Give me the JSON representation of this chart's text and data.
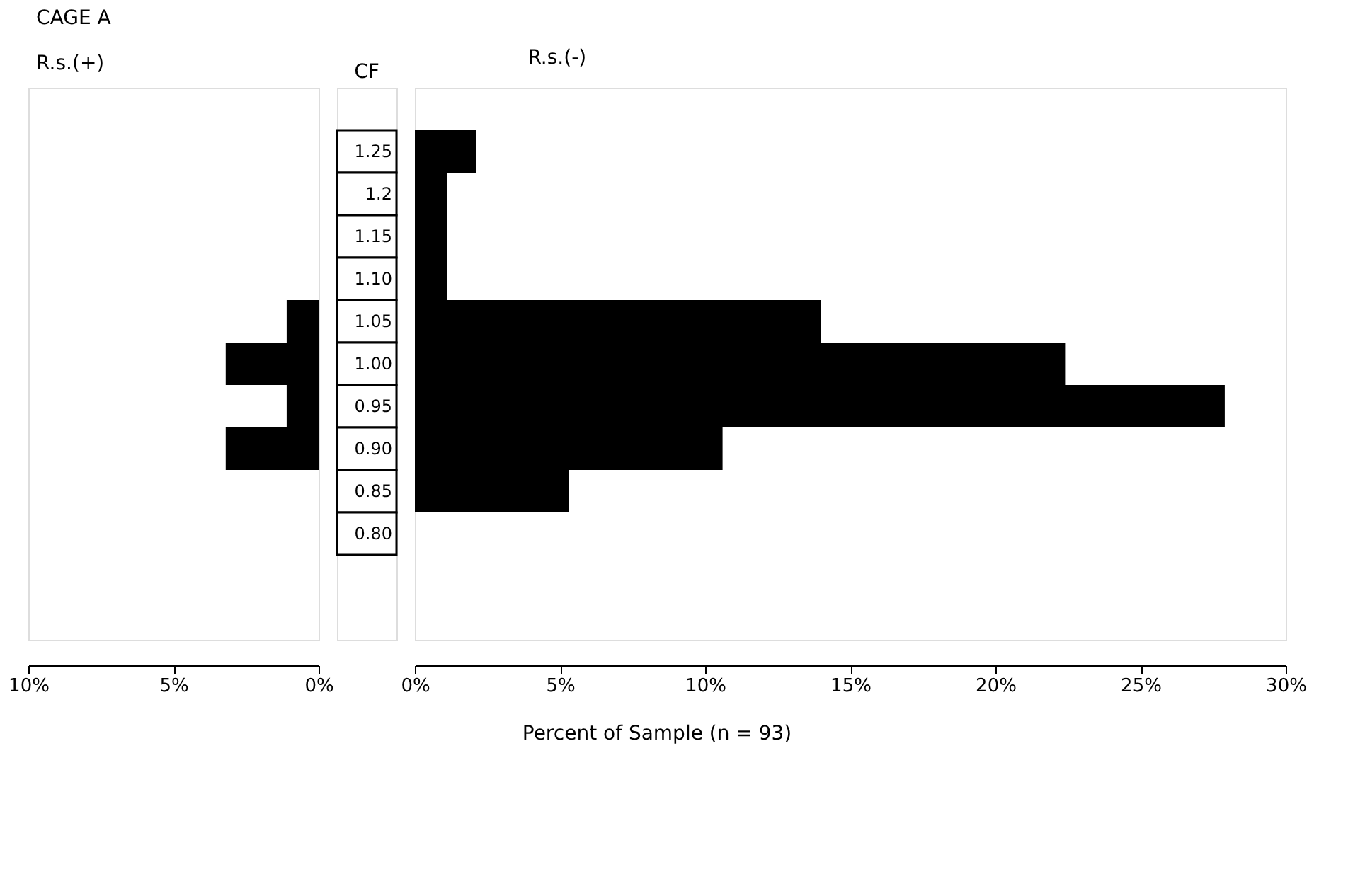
{
  "chart_data": [
    {
      "type": "bar",
      "orientation": "horizontal",
      "title": "CAGE A",
      "subtitle": "R.s.(+)",
      "tick_labels": "x",
      "grid": false,
      "color": "#000000",
      "categories": [
        null,
        "1.25",
        "1.2",
        "1.15",
        "1.10",
        "1.05",
        "1.00",
        "0.95",
        "0.90",
        "0.85",
        "0.80",
        null,
        null
      ],
      "values": [
        null,
        0,
        0,
        0,
        0,
        1.1,
        3.2,
        1.1,
        3.2,
        0,
        0,
        null,
        null
      ],
      "xlim": [
        10,
        0
      ],
      "xticks": [
        {
          "value": 10,
          "label": "10%"
        },
        {
          "value": 5,
          "label": "5%"
        },
        {
          "value": 0,
          "label": "0%"
        }
      ]
    },
    {
      "type": "bar",
      "orientation": "horizontal",
      "title": "R.s.(-)",
      "ylabel": "CF",
      "xlabel": "Percent of Sample (n = 93)",
      "grid": false,
      "color": "#000000",
      "categories": [
        null,
        "1.25",
        "1.2",
        "1.15",
        "1.10",
        "1.05",
        "1.00",
        "0.95",
        "0.90",
        "0.85",
        "0.80",
        null,
        null
      ],
      "values": [
        null,
        2.1,
        1.1,
        1.1,
        1.1,
        14.0,
        22.4,
        27.9,
        10.6,
        5.3,
        0,
        null,
        null
      ],
      "xlim": [
        0,
        30
      ],
      "xticks": [
        {
          "value": 0,
          "label": "0%"
        },
        {
          "value": 5,
          "label": "5%"
        },
        {
          "value": 10,
          "label": "10%"
        },
        {
          "value": 15,
          "label": "15%"
        },
        {
          "value": 20,
          "label": "20%"
        },
        {
          "value": 25,
          "label": "25%"
        },
        {
          "value": 30,
          "label": "30%"
        }
      ]
    }
  ]
}
